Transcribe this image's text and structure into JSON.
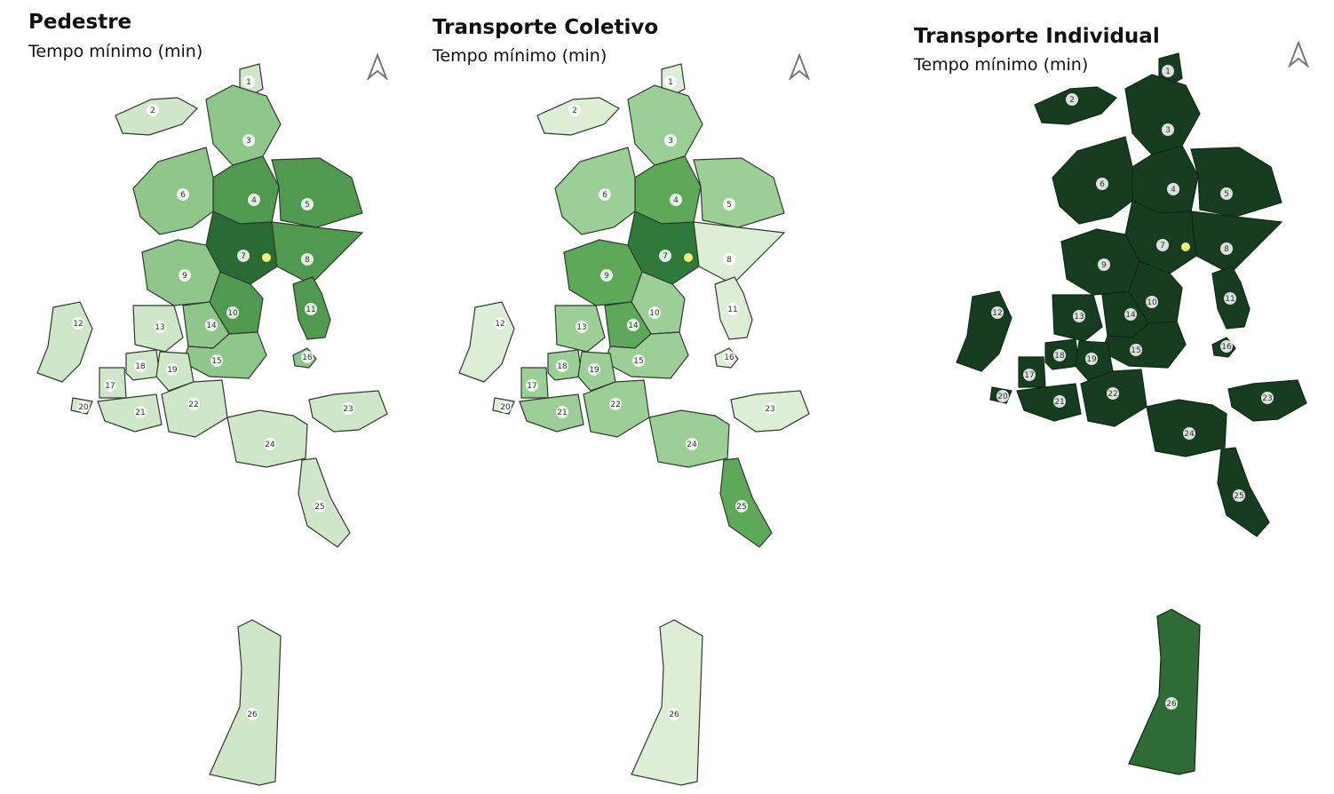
{
  "panels": [
    {
      "title": "Pedestre",
      "subtitle": "Tempo mínimo (min)",
      "colors": {
        "light": "#cfe6c8",
        "mid": "#8fc68a",
        "dark": "#4f9a4f",
        "darkest": "#2a6b34",
        "stroke": "#2f3a2f"
      },
      "regions": [
        {
          "id": "1",
          "level": "light"
        },
        {
          "id": "2",
          "level": "light"
        },
        {
          "id": "3",
          "level": "mid"
        },
        {
          "id": "4",
          "level": "dark"
        },
        {
          "id": "5",
          "level": "dark"
        },
        {
          "id": "6",
          "level": "mid"
        },
        {
          "id": "7",
          "level": "darkest"
        },
        {
          "id": "8",
          "level": "dark"
        },
        {
          "id": "9",
          "level": "mid"
        },
        {
          "id": "10",
          "level": "dark"
        },
        {
          "id": "11",
          "level": "dark"
        },
        {
          "id": "12",
          "level": "light"
        },
        {
          "id": "13",
          "level": "light"
        },
        {
          "id": "14",
          "level": "mid"
        },
        {
          "id": "15",
          "level": "mid"
        },
        {
          "id": "16",
          "level": "mid"
        },
        {
          "id": "17",
          "level": "light"
        },
        {
          "id": "18",
          "level": "light"
        },
        {
          "id": "19",
          "level": "light"
        },
        {
          "id": "20",
          "level": "light"
        },
        {
          "id": "21",
          "level": "light"
        },
        {
          "id": "22",
          "level": "light"
        },
        {
          "id": "23",
          "level": "light"
        },
        {
          "id": "24",
          "level": "light"
        },
        {
          "id": "25",
          "level": "light"
        },
        {
          "id": "26",
          "level": "light"
        }
      ]
    },
    {
      "title": "Transporte Coletivo",
      "subtitle": "Tempo mínimo (min)",
      "colors": {
        "light": "#dcefd6",
        "mid": "#9ccf95",
        "dark": "#5ea85a",
        "darkest": "#2f7a3a",
        "stroke": "#2f3a2f"
      },
      "regions": [
        {
          "id": "1",
          "level": "light"
        },
        {
          "id": "2",
          "level": "light"
        },
        {
          "id": "3",
          "level": "mid"
        },
        {
          "id": "4",
          "level": "dark"
        },
        {
          "id": "5",
          "level": "mid"
        },
        {
          "id": "6",
          "level": "mid"
        },
        {
          "id": "7",
          "level": "darkest"
        },
        {
          "id": "8",
          "level": "light"
        },
        {
          "id": "9",
          "level": "dark"
        },
        {
          "id": "10",
          "level": "mid"
        },
        {
          "id": "11",
          "level": "light"
        },
        {
          "id": "12",
          "level": "light"
        },
        {
          "id": "13",
          "level": "mid"
        },
        {
          "id": "14",
          "level": "dark"
        },
        {
          "id": "15",
          "level": "mid"
        },
        {
          "id": "16",
          "level": "light"
        },
        {
          "id": "17",
          "level": "mid"
        },
        {
          "id": "18",
          "level": "mid"
        },
        {
          "id": "19",
          "level": "mid"
        },
        {
          "id": "20",
          "level": "light"
        },
        {
          "id": "21",
          "level": "mid"
        },
        {
          "id": "22",
          "level": "mid"
        },
        {
          "id": "23",
          "level": "light"
        },
        {
          "id": "24",
          "level": "mid"
        },
        {
          "id": "25",
          "level": "dark"
        },
        {
          "id": "26",
          "level": "light"
        }
      ]
    },
    {
      "title": "Transporte Individual",
      "subtitle": "Tempo mínimo (min)",
      "colors": {
        "light": "#2e6b37",
        "mid": "#1f4f28",
        "dark": "#1a4523",
        "darkest": "#163d1f",
        "stroke": "#0f2a14"
      },
      "regions": [
        {
          "id": "1",
          "level": "darkest"
        },
        {
          "id": "2",
          "level": "darkest"
        },
        {
          "id": "3",
          "level": "darkest"
        },
        {
          "id": "4",
          "level": "darkest"
        },
        {
          "id": "5",
          "level": "darkest"
        },
        {
          "id": "6",
          "level": "darkest"
        },
        {
          "id": "7",
          "level": "darkest"
        },
        {
          "id": "8",
          "level": "darkest"
        },
        {
          "id": "9",
          "level": "darkest"
        },
        {
          "id": "10",
          "level": "darkest"
        },
        {
          "id": "11",
          "level": "darkest"
        },
        {
          "id": "12",
          "level": "darkest"
        },
        {
          "id": "13",
          "level": "darkest"
        },
        {
          "id": "14",
          "level": "darkest"
        },
        {
          "id": "15",
          "level": "darkest"
        },
        {
          "id": "16",
          "level": "darkest"
        },
        {
          "id": "17",
          "level": "darkest"
        },
        {
          "id": "18",
          "level": "darkest"
        },
        {
          "id": "19",
          "level": "darkest"
        },
        {
          "id": "20",
          "level": "darkest"
        },
        {
          "id": "21",
          "level": "darkest"
        },
        {
          "id": "22",
          "level": "darkest"
        },
        {
          "id": "23",
          "level": "darkest"
        },
        {
          "id": "24",
          "level": "darkest"
        },
        {
          "id": "25",
          "level": "darkest"
        },
        {
          "id": "26",
          "level": "light"
        }
      ]
    }
  ],
  "north_icon": "north-arrow-icon",
  "center_marker_color": "#f4f07a"
}
